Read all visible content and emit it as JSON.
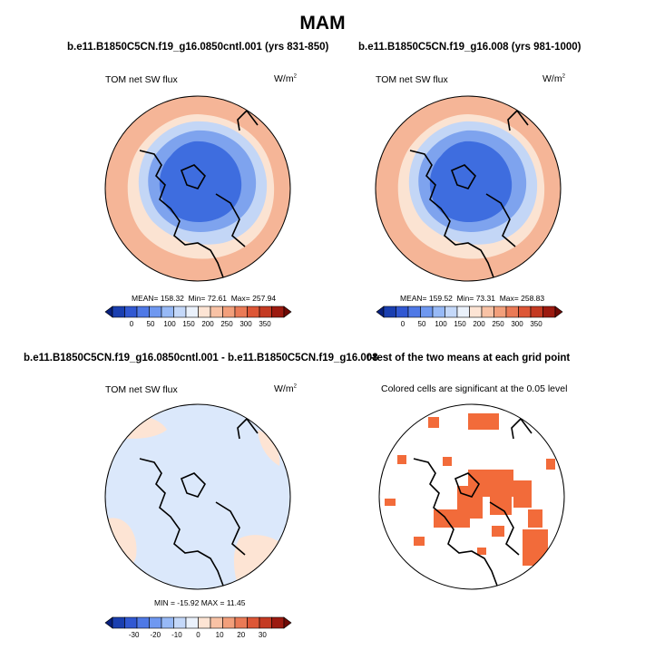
{
  "title": "MAM",
  "panels": {
    "p1": {
      "title": "b.e11.B1850C5CN.f19_g16.0850cntl.001 (yrs 831-850)",
      "field": "TOM net SW flux",
      "units_base": "W/m",
      "units_exp": "2",
      "mean_label": "MEAN=",
      "mean": "158.32",
      "min_label": "Min=",
      "min": "72.61",
      "max_label": "Max=",
      "max": "257.94"
    },
    "p2": {
      "title": "b.e11.B1850C5CN.f19_g16.008 (yrs 981-1000)",
      "field": "TOM net SW flux",
      "units_base": "W/m",
      "units_exp": "2",
      "mean_label": "MEAN=",
      "mean": "159.52",
      "min_label": "Min=",
      "min": "73.31",
      "max_label": "Max=",
      "max": "258.83"
    },
    "p3": {
      "title": "b.e11.B1850C5CN.f19_g16.0850cntl.001 - b.e11.B1850C5CN.f19_g16.008",
      "field": "TOM net SW flux",
      "units_base": "W/m",
      "units_exp": "2",
      "stats": "MIN = -15.92 MAX = 11.45"
    },
    "p4": {
      "title": "t-test of the two means at each grid point",
      "subtitle": "Colored cells are significant at the 0.05 level"
    }
  },
  "colorbars": {
    "absolute": {
      "colors": [
        "#08207e",
        "#1a3fb0",
        "#3158d2",
        "#4f79e6",
        "#6f98f0",
        "#97b9f6",
        "#c4d8f9",
        "#eaf1fb",
        "#fde4d4",
        "#f8c2a5",
        "#f29f7b",
        "#ea7a56",
        "#dd5636",
        "#c43a22",
        "#9c1a10",
        "#6e0a05"
      ],
      "ticks": [
        "0",
        "50",
        "100",
        "150",
        "200",
        "250",
        "300",
        "350"
      ]
    },
    "difference": {
      "colors": [
        "#08207e",
        "#1a3fb0",
        "#3158d2",
        "#4f79e6",
        "#6f98f0",
        "#97b9f6",
        "#c4d8f9",
        "#eaf1fb",
        "#fde4d4",
        "#f8c2a5",
        "#f29f7b",
        "#ea7a56",
        "#dd5636",
        "#c43a22",
        "#9c1a10",
        "#6e0a05"
      ],
      "ticks": [
        "-30",
        "-20",
        "-10",
        "0",
        "10",
        "20",
        "30"
      ]
    }
  },
  "colors": {
    "ocean_warm": "#f5b597",
    "mid_ring": "#fbe3d2",
    "pale_blue": "#c3d6f6",
    "mid_blue": "#7ea3ee",
    "deep_blue": "#3e6ddf",
    "diff_bg": "#dbe8fb",
    "significant": "#f26b3a"
  }
}
